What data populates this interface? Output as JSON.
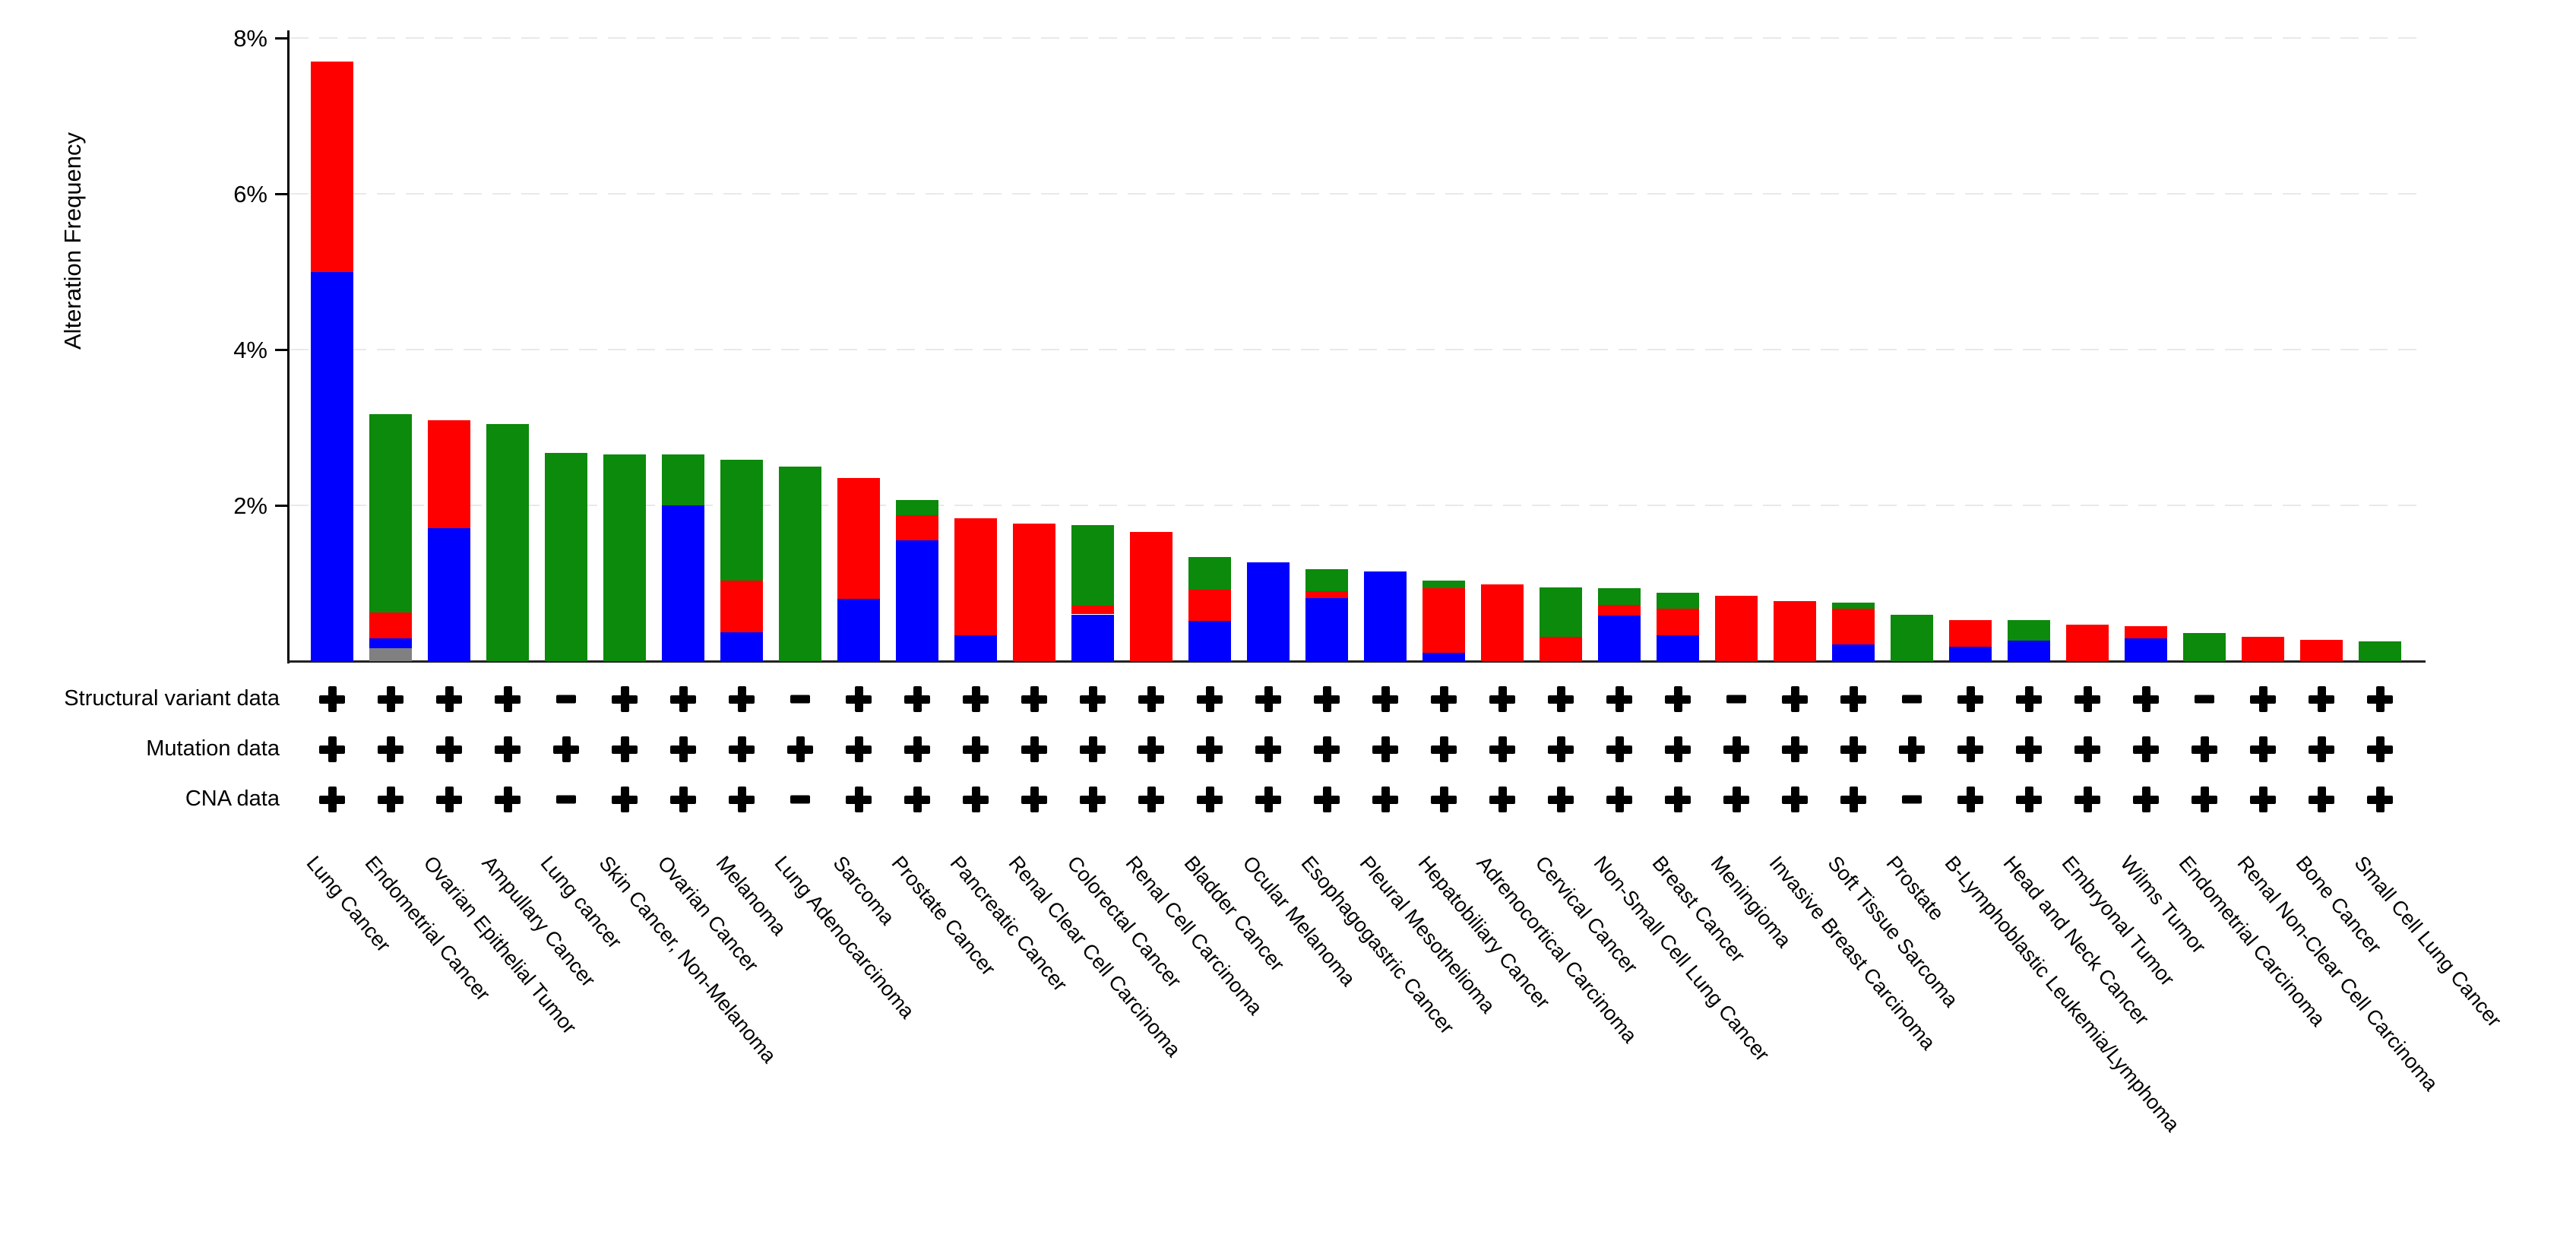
{
  "chart_data": {
    "type": "bar",
    "stacked": true,
    "orientation": "vertical",
    "ylabel": "Alteration Frequency",
    "xlabel": "",
    "ylim": [
      0,
      8.4
    ],
    "grid": "horizontal-dashed",
    "legend_position": "none",
    "y_ticks": [
      {
        "label": "8%",
        "value": 8
      },
      {
        "label": "6%",
        "value": 6
      },
      {
        "label": "4%",
        "value": 4
      },
      {
        "label": "2%",
        "value": 2
      }
    ],
    "categories": [
      "Lung Cancer",
      "Endometrial Cancer",
      "Ovarian Epithelial Tumor",
      "Ampullary Cancer",
      "Lung cancer",
      "Skin Cancer, Non-Melanoma",
      "Ovarian Cancer",
      "Melanoma",
      "Lung Adenocarcinoma",
      "Sarcoma",
      "Prostate Cancer",
      "Pancreatic Cancer",
      "Renal Clear Cell Carcinoma",
      "Colorectal Cancer",
      "Renal Cell Carcinoma",
      "Bladder Cancer",
      "Ocular Melanoma",
      "Esophagogastric Cancer",
      "Pleural Mesothelioma",
      "Hepatobiliary Cancer",
      "Adrenocortical Carcinoma",
      "Cervical Cancer",
      "Non-Small Cell Lung Cancer",
      "Breast Cancer",
      "Meningioma",
      "Invasive Breast Carcinoma",
      "Soft Tissue Sarcoma",
      "Prostate",
      "B-Lymphoblastic Leukemia/Lymphoma",
      "Head and Neck Cancer",
      "Embryonal Tumor",
      "Wilms Tumor",
      "Endometrial Carcinoma",
      "Renal Non-Clear Cell Carcinoma",
      "Bone Cancer",
      "Small Cell Lung Cancer"
    ],
    "series": [
      {
        "name": "gray-segment",
        "color": "#808080",
        "values": [
          0,
          0.17,
          0,
          0,
          0,
          0,
          0,
          0,
          0,
          0,
          0,
          0,
          0,
          0,
          0,
          0,
          0,
          0,
          0,
          0,
          0,
          0,
          0,
          0,
          0,
          0,
          0,
          0,
          0,
          0,
          0,
          0,
          0,
          0,
          0,
          0
        ]
      },
      {
        "name": "blue-segment",
        "color": "#0000ff",
        "values": [
          5.0,
          0.12,
          1.71,
          0,
          0,
          0,
          2.0,
          0.37,
          0,
          0.8,
          1.55,
          0.33,
          0,
          0.6,
          0,
          0.52,
          1.27,
          0.81,
          1.15,
          0.11,
          0,
          0,
          0.59,
          0.33,
          0,
          0,
          0.21,
          0,
          0.19,
          0.26,
          0,
          0.29,
          0,
          0,
          0,
          0
        ]
      },
      {
        "name": "red-segment",
        "color": "#ff0000",
        "values": [
          2.7,
          0.33,
          1.38,
          0,
          0,
          0,
          0,
          0.66,
          0,
          1.55,
          0.32,
          1.5,
          1.77,
          0.11,
          1.66,
          0.4,
          0,
          0.09,
          0,
          0.83,
          0.99,
          0.31,
          0.13,
          0.34,
          0.84,
          0.77,
          0.46,
          0,
          0.34,
          0,
          0.47,
          0.16,
          0,
          0.31,
          0.27,
          0
        ]
      },
      {
        "name": "green-segment",
        "color": "#0b8a0b",
        "values": [
          0,
          2.55,
          0,
          3.04,
          2.67,
          2.65,
          0.65,
          1.56,
          2.5,
          0,
          0.2,
          0,
          0,
          1.04,
          0,
          0.42,
          0,
          0.28,
          0,
          0.09,
          0,
          0.64,
          0.22,
          0.21,
          0,
          0,
          0.08,
          0.6,
          0,
          0.27,
          0,
          0,
          0.36,
          0,
          0,
          0.25
        ]
      }
    ]
  },
  "matrix": {
    "rows": [
      {
        "label": "Structural variant data",
        "values": [
          "+",
          "+",
          "+",
          "+",
          "−",
          "+",
          "+",
          "+",
          "−",
          "+",
          "+",
          "+",
          "+",
          "+",
          "+",
          "+",
          "+",
          "+",
          "+",
          "+",
          "+",
          "+",
          "+",
          "+",
          "−",
          "+",
          "+",
          "−",
          "+",
          "+",
          "+",
          "+",
          "−",
          "+",
          "+",
          "+"
        ]
      },
      {
        "label": "Mutation data",
        "values": [
          "+",
          "+",
          "+",
          "+",
          "+",
          "+",
          "+",
          "+",
          "+",
          "+",
          "+",
          "+",
          "+",
          "+",
          "+",
          "+",
          "+",
          "+",
          "+",
          "+",
          "+",
          "+",
          "+",
          "+",
          "+",
          "+",
          "+",
          "+",
          "+",
          "+",
          "+",
          "+",
          "+",
          "+",
          "+",
          "+"
        ]
      },
      {
        "label": "CNA data",
        "values": [
          "+",
          "+",
          "+",
          "+",
          "−",
          "+",
          "+",
          "+",
          "−",
          "+",
          "+",
          "+",
          "+",
          "+",
          "+",
          "+",
          "+",
          "+",
          "+",
          "+",
          "+",
          "+",
          "+",
          "+",
          "+",
          "+",
          "+",
          "−",
          "+",
          "+",
          "+",
          "+",
          "+",
          "+",
          "+",
          "+"
        ]
      }
    ]
  }
}
